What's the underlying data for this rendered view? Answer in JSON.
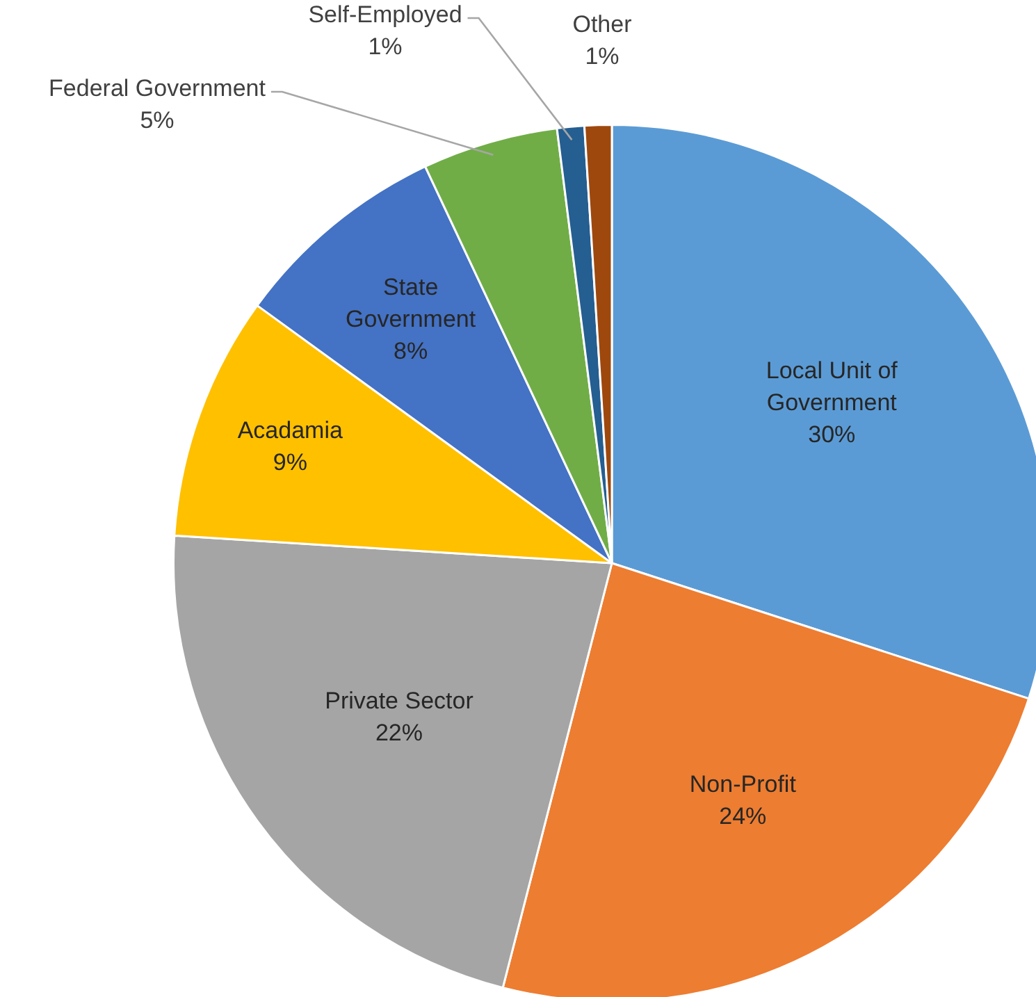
{
  "chart_data": {
    "type": "pie",
    "categories": [
      "Local Unit of Government",
      "Non-Profit",
      "Private Sector",
      "Acadamia",
      "State Government",
      "Federal Government",
      "Self-Employed",
      "Other"
    ],
    "values": [
      30,
      24,
      22,
      9,
      8,
      5,
      1,
      1
    ],
    "value_labels": [
      "30%",
      "24%",
      "22%",
      "9%",
      "8%",
      "5%",
      "1%",
      "1%"
    ],
    "colors": [
      "#5b9bd5",
      "#ed7d31",
      "#a5a5a5",
      "#ffc000",
      "#4472c4",
      "#70ad47",
      "#255e91",
      "#9e480e"
    ],
    "legend": false
  }
}
